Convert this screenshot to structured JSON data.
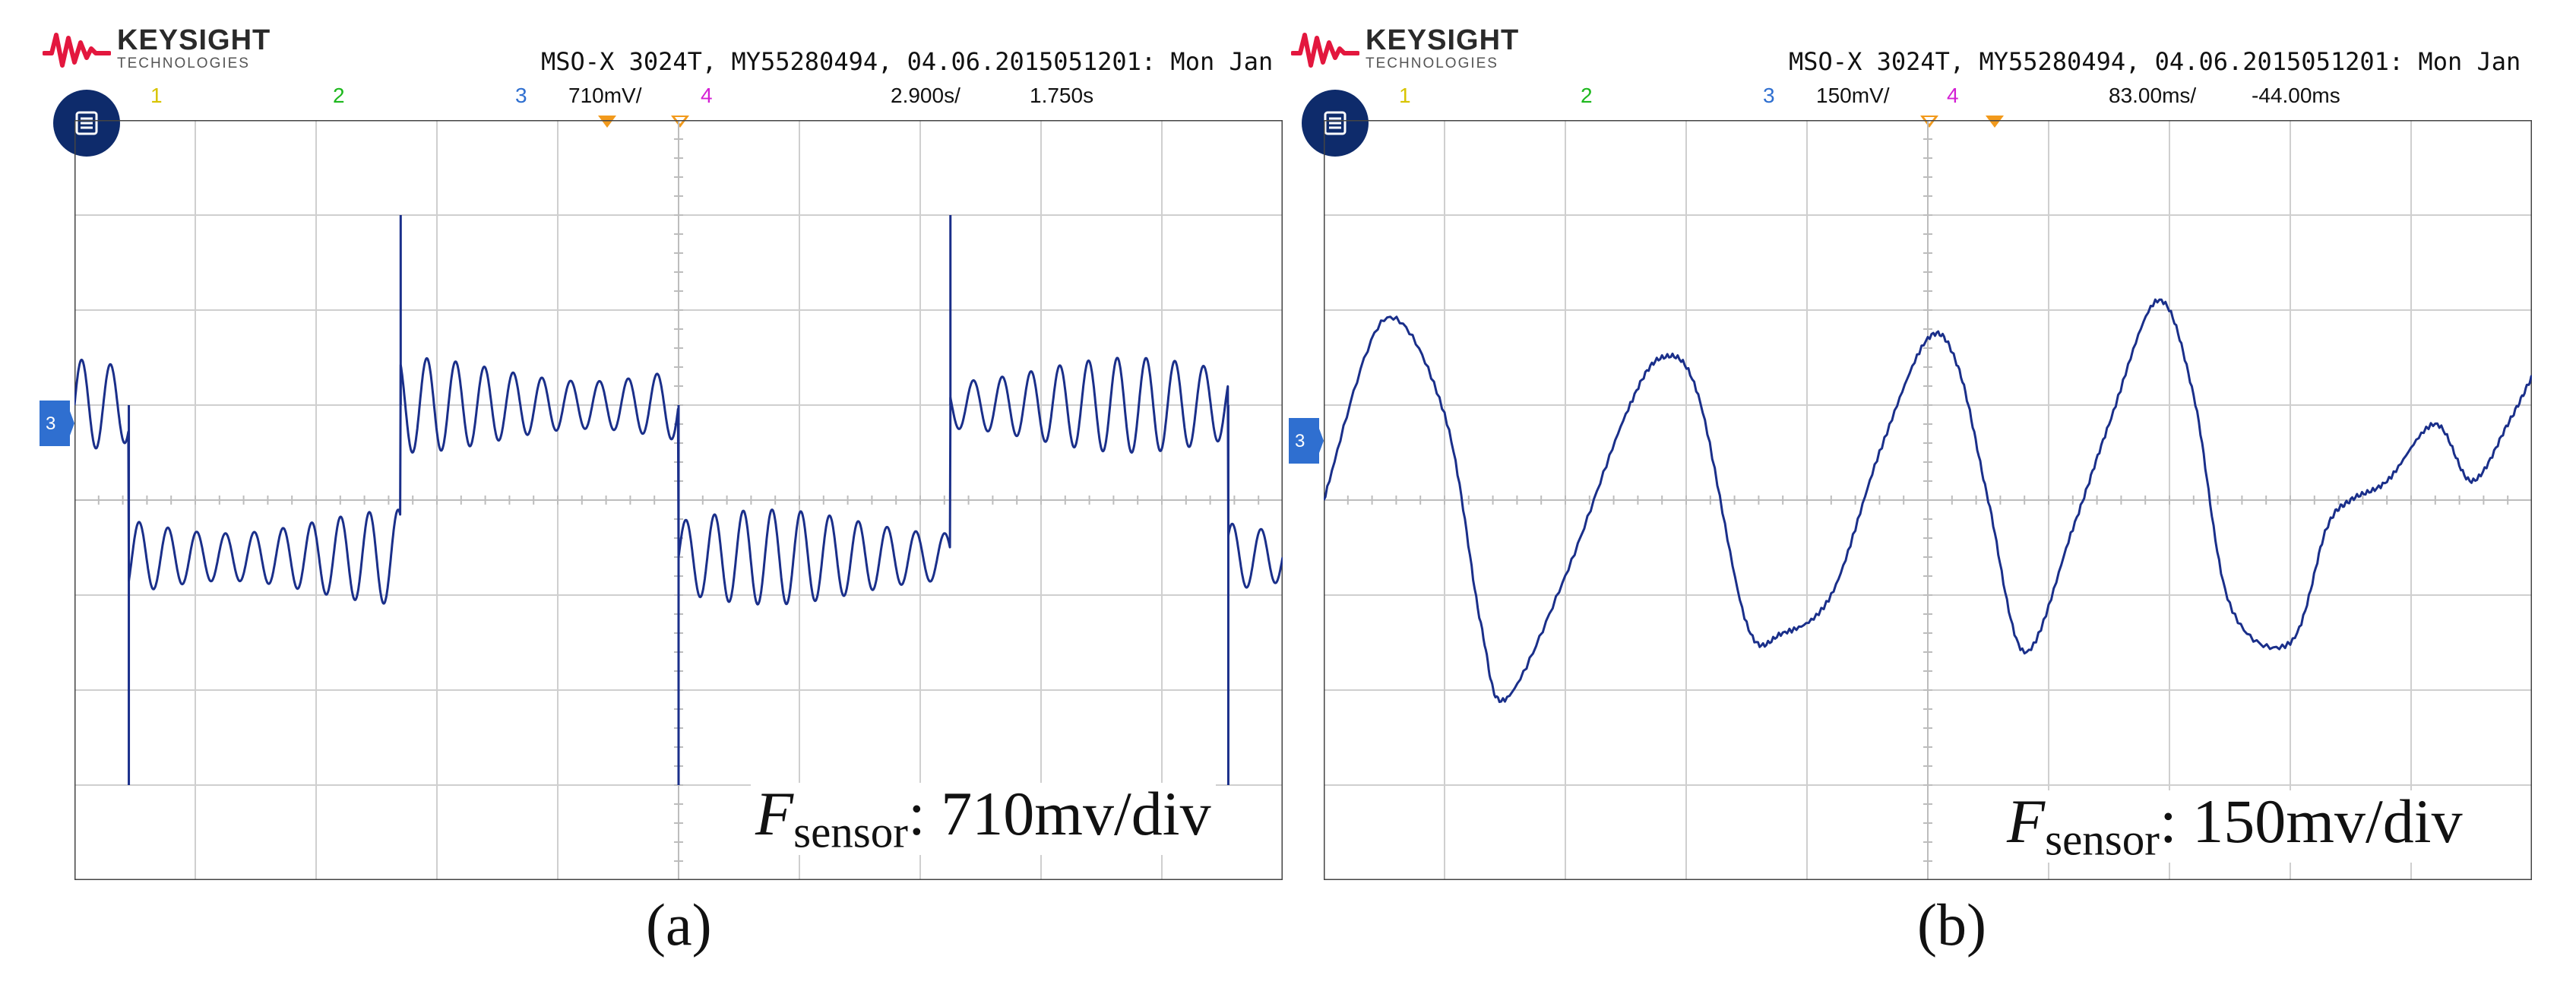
{
  "brand": {
    "name": "KEYSIGHT",
    "sub": "TECHNOLOGIES"
  },
  "colors": {
    "trace": "#1a2f8a",
    "grid": "#cfcfcf",
    "accent": "#e3173e",
    "menu": "#0e2b6b",
    "trigger": "#f29a1c"
  },
  "panels": [
    {
      "id": "a",
      "header": "MSO-X 3024T, MY55280494, 04.06.2015051201: Mon Jan",
      "channels": [
        "1",
        "2",
        "3",
        "4"
      ],
      "scale": "710mV/",
      "timebase": "2.900s/",
      "delay": "1.750s",
      "annotation_symbol": "F",
      "annotation_sub": "sensor",
      "annotation_value": ": 710mv/div",
      "figure_label": "(a)"
    },
    {
      "id": "b",
      "header": "MSO-X 3024T, MY55280494, 04.06.2015051201: Mon Jan",
      "channels": [
        "1",
        "2",
        "3",
        "4"
      ],
      "scale": "150mV/",
      "timebase": "83.00ms/",
      "delay": "-44.00ms",
      "annotation_symbol": "F",
      "annotation_sub": "sensor",
      "annotation_value": ": 150mv/div",
      "figure_label": "(b)"
    }
  ],
  "chart_data": [
    {
      "type": "line",
      "title": "",
      "xlabel": "",
      "ylabel": "",
      "grid": true,
      "x_divisions": 10,
      "y_divisions": 8,
      "xlim": [
        -5,
        5
      ],
      "ylim": [
        -4,
        4
      ],
      "x_unit": "div",
      "y_unit": "div",
      "series": [
        {
          "waveform": "square wave with superimposed oscillation",
          "channel": "3",
          "high_level_div": 1.0,
          "low_level_div": -0.6,
          "ripple_peak_to_peak_div": 1.0,
          "ripple_cycles_per_div": 4.2,
          "transitions_div": [
            -4.55,
            -2.3,
            0.0,
            2.25,
            4.55
          ],
          "spike_peaks_div": [
            -3.0,
            3.0,
            -3.0,
            3.0,
            -3.0
          ]
        }
      ]
    },
    {
      "type": "line",
      "title": "",
      "xlabel": "",
      "ylabel": "",
      "grid": true,
      "x_divisions": 10,
      "y_divisions": 8,
      "xlim": [
        -5,
        5
      ],
      "ylim": [
        -4,
        4
      ],
      "x_unit": "div",
      "y_unit": "div",
      "series": [
        {
          "waveform": "quasi-sinusoidal",
          "channel": "3",
          "x": [
            -5.0,
            -4.5,
            -4.0,
            -3.7,
            -3.5,
            -3.0,
            -2.5,
            -2.2,
            -1.9,
            -1.5,
            -1.2,
            -0.8,
            -0.4,
            0.0,
            0.25,
            0.5,
            0.8,
            1.2,
            1.5,
            1.9,
            2.2,
            2.5,
            3.0,
            3.3,
            3.5,
            3.8,
            4.2,
            4.5,
            4.8,
            5.0
          ],
          "y": [
            0.0,
            1.9,
            0.9,
            -1.3,
            -2.1,
            -0.8,
            0.9,
            1.5,
            1.1,
            -1.3,
            -1.4,
            -1.0,
            0.5,
            1.7,
            1.4,
            0.0,
            -1.6,
            -0.3,
            0.8,
            2.1,
            1.1,
            -1.1,
            -1.5,
            -0.3,
            0.0,
            0.2,
            0.8,
            0.2,
            0.8,
            1.3
          ]
        }
      ]
    }
  ]
}
